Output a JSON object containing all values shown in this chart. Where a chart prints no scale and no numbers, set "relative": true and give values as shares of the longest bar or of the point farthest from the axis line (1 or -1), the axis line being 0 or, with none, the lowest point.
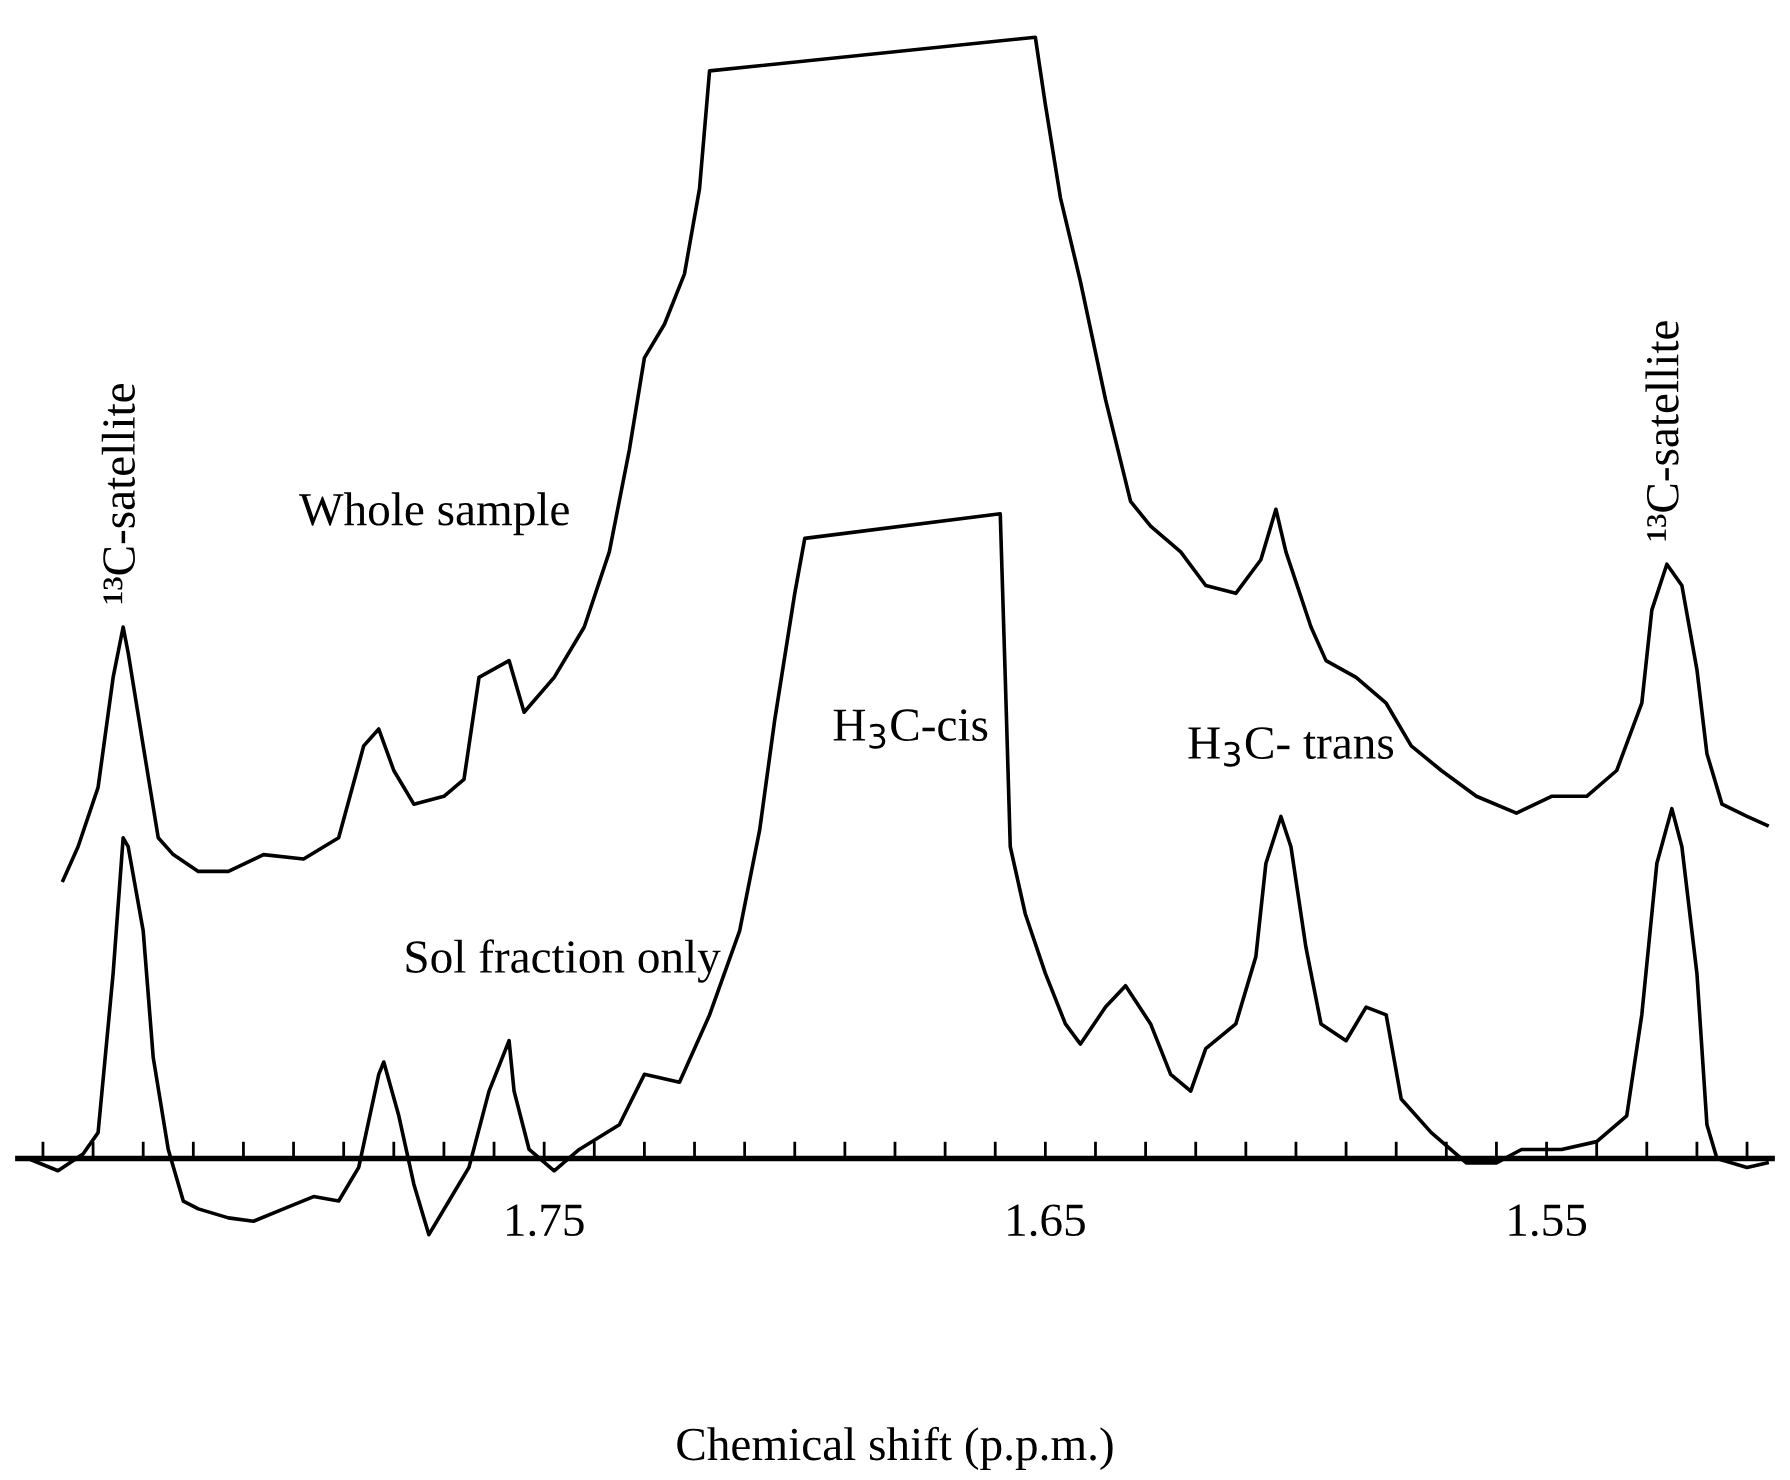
{
  "chart_data": {
    "type": "line",
    "relative": true,
    "xlabel": "Chemical shift (p.p.m.)",
    "xlim": [
      1.855,
      1.505
    ],
    "xticks": [
      {
        "value": 1.85,
        "label": null
      },
      {
        "value": 1.84,
        "label": null
      },
      {
        "value": 1.83,
        "label": null
      },
      {
        "value": 1.82,
        "label": null
      },
      {
        "value": 1.81,
        "label": null
      },
      {
        "value": 1.8,
        "label": null
      },
      {
        "value": 1.79,
        "label": null
      },
      {
        "value": 1.78,
        "label": null
      },
      {
        "value": 1.77,
        "label": null
      },
      {
        "value": 1.76,
        "label": null
      },
      1.75,
      {
        "value": 1.74,
        "label": null
      },
      {
        "value": 1.73,
        "label": null
      },
      {
        "value": 1.72,
        "label": null
      },
      {
        "value": 1.71,
        "label": null
      },
      {
        "value": 1.7,
        "label": null
      },
      {
        "value": 1.69,
        "label": null
      },
      {
        "value": 1.68,
        "label": null
      },
      {
        "value": 1.67,
        "label": null
      },
      {
        "value": 1.66,
        "label": null
      },
      1.65,
      {
        "value": 1.64,
        "label": null
      },
      {
        "value": 1.63,
        "label": null
      },
      {
        "value": 1.62,
        "label": null
      },
      {
        "value": 1.61,
        "label": null
      },
      {
        "value": 1.6,
        "label": null
      },
      {
        "value": 1.59,
        "label": null
      },
      {
        "value": 1.58,
        "label": null
      },
      {
        "value": 1.57,
        "label": null
      },
      {
        "value": 1.56,
        "label": null
      },
      1.55,
      {
        "value": 1.54,
        "label": null
      },
      {
        "value": 1.53,
        "label": null
      },
      {
        "value": 1.52,
        "label": null
      },
      {
        "value": 1.51,
        "label": null
      }
    ],
    "grid": false,
    "legend": false,
    "marker": "none",
    "line_style": "solid",
    "series": [
      {
        "name": "Whole sample",
        "color": "#000000",
        "x": [
          1.846,
          1.843,
          1.839,
          1.836,
          1.834,
          1.833,
          1.83,
          1.827,
          1.824,
          1.819,
          1.813,
          1.806,
          1.798,
          1.791,
          1.786,
          1.783,
          1.78,
          1.776,
          1.77,
          1.766,
          1.763,
          1.757,
          1.754,
          1.748,
          1.742,
          1.737,
          1.733,
          1.73,
          1.726,
          1.722,
          1.719,
          1.717,
          1.652,
          1.65,
          1.647,
          1.643,
          1.638,
          1.633,
          1.629,
          1.623,
          1.618,
          1.612,
          1.607,
          1.604,
          1.602,
          1.597,
          1.594,
          1.588,
          1.582,
          1.577,
          1.571,
          1.564,
          1.556,
          1.549,
          1.542,
          1.536,
          1.531,
          1.529,
          1.526,
          1.523,
          1.52,
          1.518,
          1.515,
          1.51,
          1.506
        ],
        "values": [
          0.248,
          0.278,
          0.331,
          0.429,
          0.474,
          0.451,
          0.368,
          0.286,
          0.271,
          0.256,
          0.256,
          0.271,
          0.267,
          0.286,
          0.368,
          0.383,
          0.346,
          0.316,
          0.323,
          0.338,
          0.429,
          0.444,
          0.398,
          0.429,
          0.474,
          0.541,
          0.632,
          0.714,
          0.744,
          0.789,
          0.865,
          0.97,
          1,
          0.94,
          0.857,
          0.782,
          0.677,
          0.586,
          0.564,
          0.541,
          0.511,
          0.504,
          0.534,
          0.579,
          0.541,
          0.474,
          0.444,
          0.429,
          0.406,
          0.368,
          0.346,
          0.323,
          0.308,
          0.323,
          0.323,
          0.346,
          0.406,
          0.489,
          0.53,
          0.511,
          0.436,
          0.361,
          0.316,
          0.305,
          0.297
        ]
      },
      {
        "name": "Sol fraction only",
        "color": "#000000",
        "x": [
          1.853,
          1.847,
          1.842,
          1.839,
          1.836,
          1.834,
          1.833,
          1.83,
          1.828,
          1.825,
          1.822,
          1.819,
          1.813,
          1.808,
          1.802,
          1.796,
          1.791,
          1.787,
          1.783,
          1.782,
          1.779,
          1.776,
          1.773,
          1.769,
          1.765,
          1.761,
          1.757,
          1.756,
          1.753,
          1.748,
          1.743,
          1.735,
          1.73,
          1.723,
          1.717,
          1.711,
          1.707,
          1.704,
          1.7,
          1.698,
          1.659,
          1.658,
          1.657,
          1.654,
          1.65,
          1.646,
          1.643,
          1.638,
          1.634,
          1.629,
          1.625,
          1.621,
          1.618,
          1.612,
          1.608,
          1.606,
          1.603,
          1.601,
          1.598,
          1.595,
          1.59,
          1.586,
          1.582,
          1.579,
          1.573,
          1.566,
          1.56,
          1.555,
          1.547,
          1.54,
          1.534,
          1.531,
          1.528,
          1.525,
          1.523,
          1.52,
          1.518,
          1.516,
          1.51,
          1.506
        ],
        "values": [
          0,
          -0.011,
          0.004,
          0.023,
          0.165,
          0.286,
          0.278,
          0.203,
          0.09,
          0.008,
          -0.038,
          -0.045,
          -0.053,
          -0.056,
          -0.045,
          -0.034,
          -0.038,
          -0.008,
          0.075,
          0.086,
          0.038,
          -0.023,
          -0.068,
          -0.038,
          -0.008,
          0.06,
          0.105,
          0.06,
          0.008,
          -0.011,
          0.008,
          0.03,
          0.075,
          0.068,
          0.128,
          0.203,
          0.293,
          0.391,
          0.504,
          0.553,
          0.575,
          0.429,
          0.278,
          0.218,
          0.165,
          0.12,
          0.102,
          0.135,
          0.154,
          0.12,
          0.075,
          0.06,
          0.098,
          0.12,
          0.18,
          0.263,
          0.305,
          0.278,
          0.188,
          0.12,
          0.105,
          0.135,
          0.128,
          0.053,
          0.023,
          -0.004,
          -0.004,
          0.008,
          0.008,
          0.015,
          0.038,
          0.128,
          0.263,
          0.312,
          0.278,
          0.165,
          0.03,
          0,
          -0.008,
          -0.004
        ]
      }
    ],
    "annotations": [
      "¹³C-satellite",
      "¹³C-satellite",
      "H$_{3}$C-cis",
      "H$_{3}$C- trans"
    ]
  }
}
